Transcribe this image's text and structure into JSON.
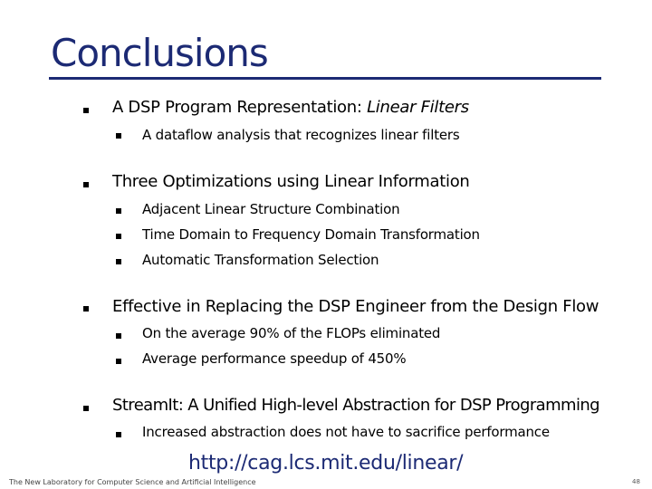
{
  "slide": {
    "title": "Conclusions",
    "bullets": [
      {
        "text": "A DSP Program Representation: ",
        "emphasis": "Linear Filters",
        "sub": [
          "A dataflow analysis that recognizes linear filters"
        ]
      },
      {
        "text": "Three Optimizations using Linear Information",
        "sub": [
          "Adjacent Linear Structure Combination",
          "Time Domain to Frequency Domain Transformation",
          "Automatic Transformation Selection"
        ]
      },
      {
        "text": "Effective in Replacing the DSP Engineer from the Design Flow",
        "sub": [
          "On the average 90% of the FLOPs eliminated",
          "Average performance speedup of 450%"
        ]
      },
      {
        "text": "StreamIt: A Unified High-level Abstraction for DSP Programming",
        "sub": [
          "Increased abstraction does not have to sacrifice performance"
        ]
      }
    ],
    "link": "http://cag.lcs.mit.edu/linear/",
    "footer": "The New Laboratory for Computer Science and Artificial Intelligence",
    "page_number": "48"
  },
  "colors": {
    "title": "#1c2a74",
    "text": "#000000"
  }
}
